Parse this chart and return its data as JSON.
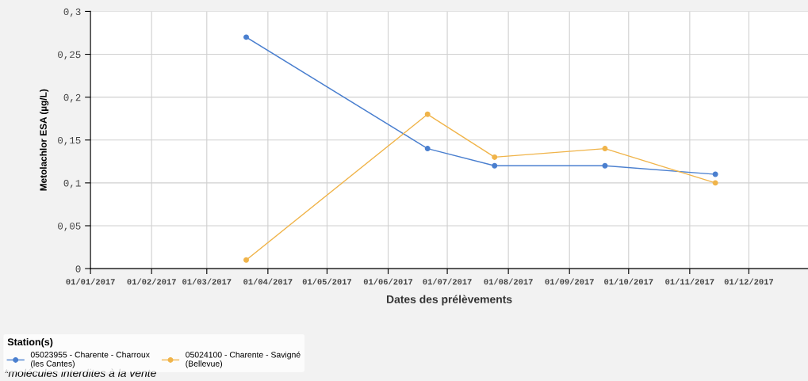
{
  "chart_data": {
    "type": "line",
    "xlabel": "Dates des prélèvements",
    "ylabel": "Metolachlor ESA (µg/L)",
    "legend_title": "Station(s)",
    "x": [
      "2017-03-21",
      "2017-06-21",
      "2017-07-25",
      "2017-09-19",
      "2017-11-14"
    ],
    "series": [
      {
        "name": "05023955 - Charente - Charroux\n(les Cantes)",
        "color": "#4a7fcf",
        "values": [
          0.27,
          0.14,
          0.12,
          0.12,
          0.11
        ]
      },
      {
        "name": "05024100 - Charente - Savigné\n(Bellevue)",
        "color": "#f0b44a",
        "values": [
          0.01,
          0.18,
          0.13,
          0.14,
          0.1
        ]
      }
    ],
    "xlim": [
      "2017-01-01",
      "2017-12-31"
    ],
    "xticks": [
      {
        "value": "2017-01-01",
        "label": "01/01/2017"
      },
      {
        "value": "2017-02-01",
        "label": "01/02/2017"
      },
      {
        "value": "2017-03-01",
        "label": "01/03/2017"
      },
      {
        "value": "2017-04-01",
        "label": "01/04/2017"
      },
      {
        "value": "2017-05-01",
        "label": "01/05/2017"
      },
      {
        "value": "2017-06-01",
        "label": "01/06/2017"
      },
      {
        "value": "2017-07-01",
        "label": "01/07/2017"
      },
      {
        "value": "2017-08-01",
        "label": "01/08/2017"
      },
      {
        "value": "2017-09-01",
        "label": "01/09/2017"
      },
      {
        "value": "2017-10-01",
        "label": "01/10/2017"
      },
      {
        "value": "2017-11-01",
        "label": "01/11/2017"
      },
      {
        "value": "2017-12-01",
        "label": "01/12/2017"
      }
    ],
    "ylim": [
      0,
      0.3
    ],
    "yticks": [
      {
        "value": 0,
        "label": "0"
      },
      {
        "value": 0.05,
        "label": "0,05"
      },
      {
        "value": 0.1,
        "label": "0,1"
      },
      {
        "value": 0.15,
        "label": "0,15"
      },
      {
        "value": 0.2,
        "label": "0,2"
      },
      {
        "value": 0.25,
        "label": "0,25"
      },
      {
        "value": 0.3,
        "label": "0,3"
      }
    ],
    "grid": true,
    "legend": "bottom",
    "marker": "circle",
    "line_style": "solid",
    "annotations": [
      "*molécules interdites à la vente"
    ]
  }
}
